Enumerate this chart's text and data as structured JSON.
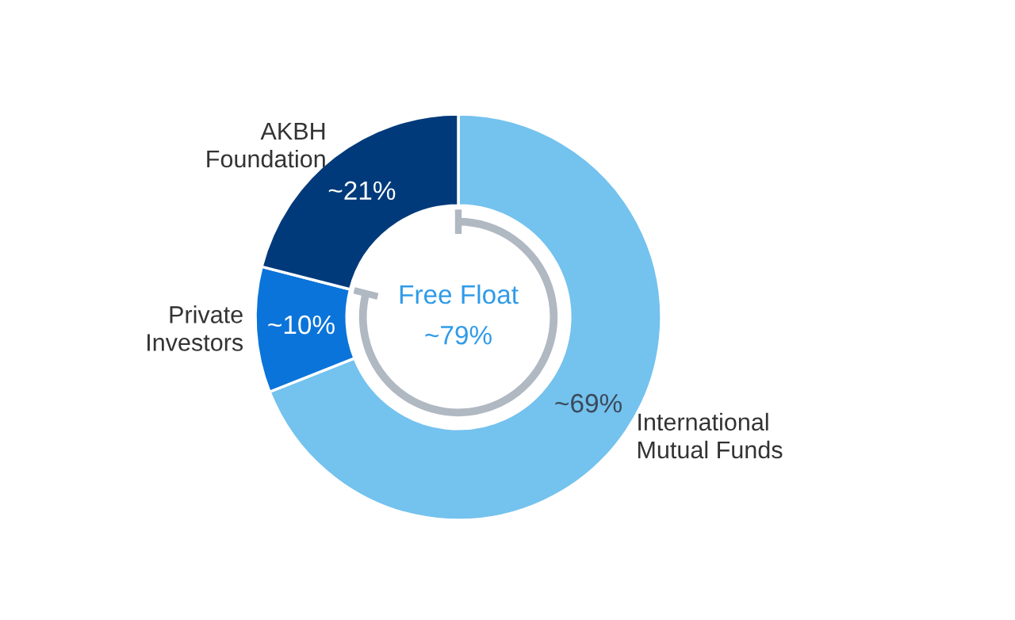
{
  "chart_data": {
    "type": "donut",
    "categories": [
      "International\nMutual Funds",
      "Private\nInvestors",
      "AKBH\nFoundation"
    ],
    "values": [
      69,
      10,
      21
    ],
    "value_labels": [
      "~69%",
      "~10%",
      "~21%"
    ],
    "colors": [
      "#74c2ee",
      "#0a74da",
      "#003a7a"
    ],
    "annotations": [
      "Free Float",
      "~79%"
    ],
    "legend": false
  }
}
